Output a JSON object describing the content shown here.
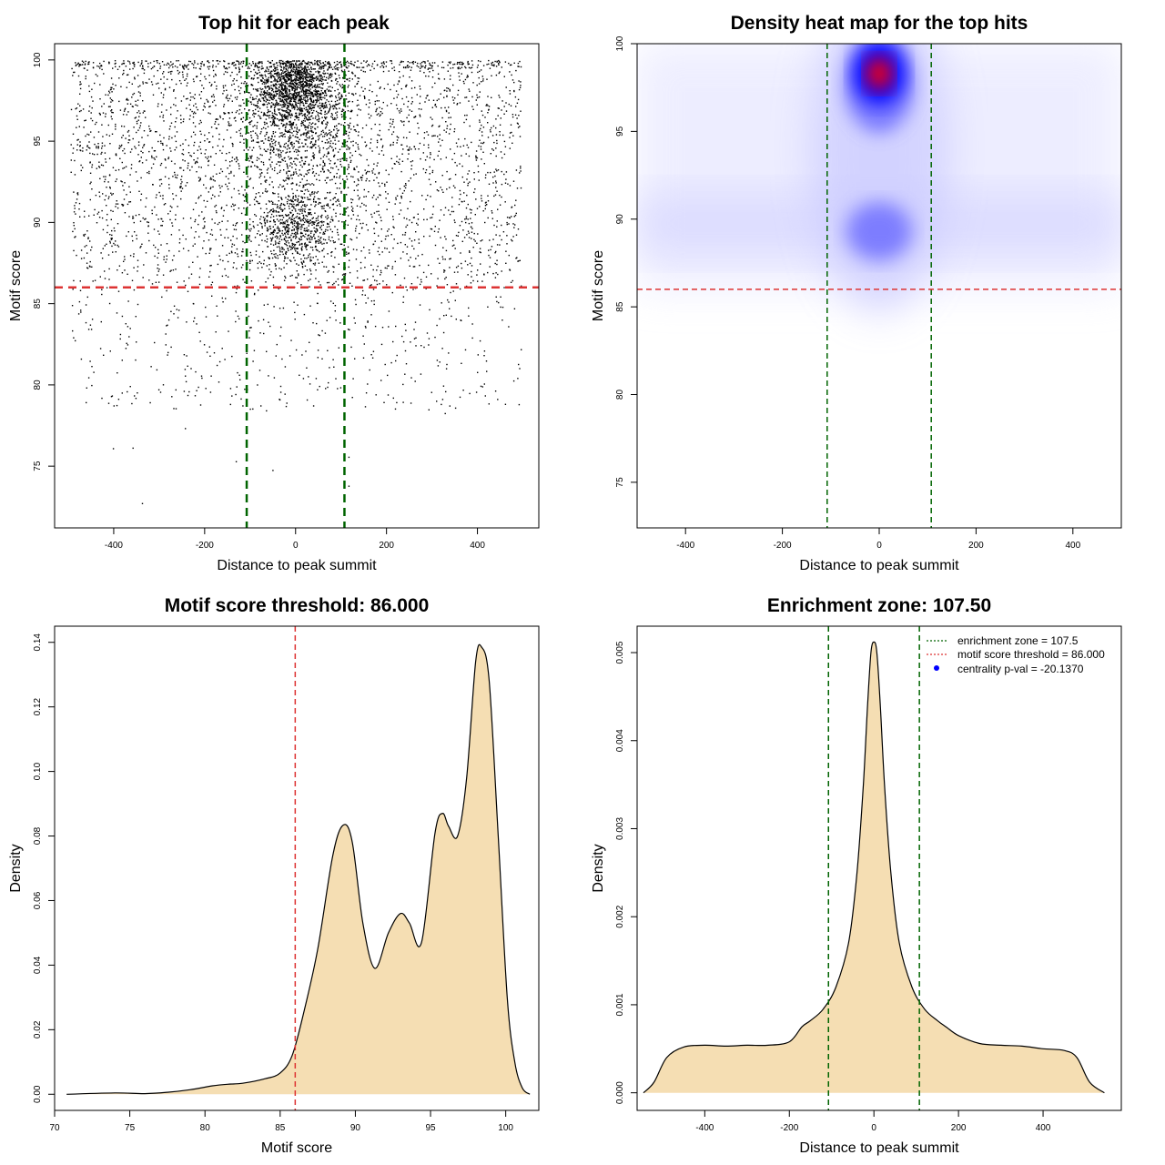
{
  "chart_data": [
    {
      "type": "scatter",
      "title": "Top hit for each peak",
      "xlabel": "Distance to peak summit",
      "ylabel": "Motif score",
      "xlim": [
        -530,
        535
      ],
      "ylim": [
        71.2,
        101.0
      ],
      "xticks": [
        -400,
        -200,
        0,
        200,
        400
      ],
      "yticks": [
        75,
        80,
        85,
        90,
        95,
        100
      ],
      "xtick_labels": [
        "-400",
        "-200",
        "0",
        "200",
        "400"
      ],
      "ytick_labels": [
        "75",
        "80",
        "85",
        "90",
        "95",
        "100"
      ],
      "vlines": [
        -107.5,
        107.5
      ],
      "hline": 86,
      "vline_color": "#006400",
      "hline_color": "#dd3333",
      "point_color": "#000000"
    },
    {
      "type": "heatmap",
      "title": "Density heat map for the top hits",
      "xlabel": "Distance to peak summit",
      "ylabel": "Motif score",
      "xlim": [
        -500,
        500
      ],
      "ylim": [
        72.4,
        100.0
      ],
      "xticks": [
        -400,
        -200,
        0,
        200,
        400
      ],
      "yticks": [
        75,
        80,
        85,
        90,
        95,
        100
      ],
      "xtick_labels": [
        "-400",
        "-200",
        "0",
        "200",
        "400"
      ],
      "ytick_labels": [
        "75",
        "80",
        "85",
        "90",
        "95",
        "100"
      ],
      "vlines": [
        -107.5,
        107.5
      ],
      "hline": 86,
      "hotspots": [
        {
          "x": 0,
          "y": 98.3,
          "intensity": "max"
        },
        {
          "x": 0,
          "y": 89.3,
          "intensity": "medium"
        }
      ],
      "colors": [
        "#ffffff",
        "#0000ff",
        "#ff0000"
      ]
    },
    {
      "type": "area",
      "title": "Motif score threshold: 86.000",
      "xlabel": "Motif score",
      "ylabel": "Density",
      "xlim": [
        70,
        102.2
      ],
      "ylim": [
        -0.005,
        0.145
      ],
      "xticks": [
        70,
        75,
        80,
        85,
        90,
        95,
        100
      ],
      "yticks": [
        0.0,
        0.02,
        0.04,
        0.06,
        0.08,
        0.1,
        0.12,
        0.14
      ],
      "xtick_labels": [
        "70",
        "75",
        "80",
        "85",
        "90",
        "95",
        "100"
      ],
      "ytick_labels": [
        "0.00",
        "0.02",
        "0.04",
        "0.06",
        "0.08",
        "0.10",
        "0.12",
        "0.14"
      ],
      "vline": 86,
      "fill_color": "#f5deb3",
      "x": [
        70.8,
        74,
        76,
        77.5,
        79,
        80.5,
        81.5,
        82.5,
        84,
        85,
        85.8,
        86.6,
        87.5,
        88.5,
        89.2,
        89.8,
        90.5,
        91.3,
        92.2,
        93.0,
        93.6,
        94.4,
        95.3,
        95.8,
        96.2,
        96.8,
        97.4,
        98.0,
        98.4,
        98.9,
        99.5,
        100.1,
        100.6,
        101.1,
        101.6
      ],
      "y": [
        0.0,
        0.0004,
        0.0002,
        0.0006,
        0.0014,
        0.0026,
        0.0031,
        0.0034,
        0.0048,
        0.0066,
        0.012,
        0.026,
        0.045,
        0.074,
        0.0834,
        0.078,
        0.053,
        0.039,
        0.05,
        0.056,
        0.053,
        0.047,
        0.081,
        0.087,
        0.083,
        0.08,
        0.098,
        0.134,
        0.1385,
        0.128,
        0.08,
        0.03,
        0.01,
        0.002,
        0.0
      ],
      "vline_color": "#dd3333"
    },
    {
      "type": "area",
      "title": "Enrichment zone: 107.50",
      "xlabel": "Distance to peak summit",
      "ylabel": "Density",
      "xlim": [
        -560,
        585
      ],
      "ylim": [
        -0.0002,
        0.0053
      ],
      "xticks": [
        -400,
        -200,
        0,
        200,
        400
      ],
      "yticks": [
        0.0,
        0.001,
        0.002,
        0.003,
        0.004,
        0.005
      ],
      "xtick_labels": [
        "-400",
        "-200",
        "0",
        "200",
        "400"
      ],
      "ytick_labels": [
        "0.000",
        "0.001",
        "0.002",
        "0.003",
        "0.004",
        "0.005"
      ],
      "vlines": [
        -107.5,
        107.5
      ],
      "fill_color": "#f5deb3",
      "x": [
        -545,
        -520,
        -490,
        -450,
        -400,
        -350,
        -300,
        -250,
        -200,
        -170,
        -150,
        -120,
        -90,
        -60,
        -40,
        -25,
        -15,
        -7,
        0,
        7,
        15,
        25,
        40,
        60,
        90,
        120,
        150,
        170,
        200,
        250,
        300,
        350,
        400,
        450,
        480,
        510,
        545
      ],
      "y": [
        0.0,
        0.00012,
        0.0004,
        0.00052,
        0.00054,
        0.00053,
        0.00054,
        0.00054,
        0.00058,
        0.00075,
        0.00082,
        0.00095,
        0.0012,
        0.0017,
        0.0025,
        0.0035,
        0.0044,
        0.005,
        0.00512,
        0.005,
        0.0044,
        0.0035,
        0.0025,
        0.0017,
        0.0012,
        0.00095,
        0.00082,
        0.00075,
        0.00065,
        0.00056,
        0.00054,
        0.00053,
        0.0005,
        0.00048,
        0.0004,
        0.00012,
        0.0
      ],
      "legend": [
        {
          "label": "enrichment zone = 107.5",
          "color": "#006400",
          "symbol": "dotted-line"
        },
        {
          "label": "motif score threshold = 86.000",
          "color": "#dd3333",
          "symbol": "dotted-line"
        },
        {
          "label": "centrality p-val = -20.1370",
          "color": "#0000ff",
          "symbol": "dot"
        }
      ],
      "legend_position": "top-right"
    }
  ]
}
